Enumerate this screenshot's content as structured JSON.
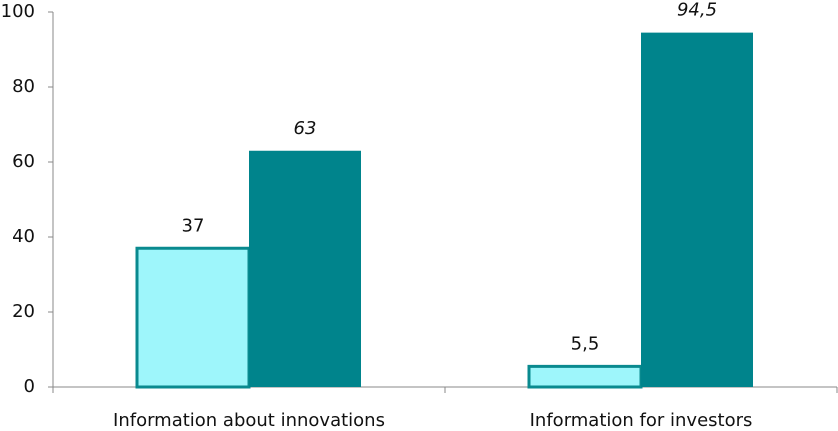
{
  "chart_data": {
    "type": "bar",
    "categories": [
      "Information about innovations",
      "Information for investors"
    ],
    "series": [
      {
        "color": "#9ef6fb",
        "values": [
          37,
          5.5
        ],
        "value_labels": [
          "37",
          "5,5"
        ]
      },
      {
        "color": "#00848c",
        "values": [
          63,
          94.5
        ],
        "value_labels": [
          "63",
          "94,5"
        ]
      }
    ],
    "ylim": [
      0,
      100
    ],
    "yticks": [
      0,
      20,
      40,
      60,
      80,
      100
    ]
  }
}
